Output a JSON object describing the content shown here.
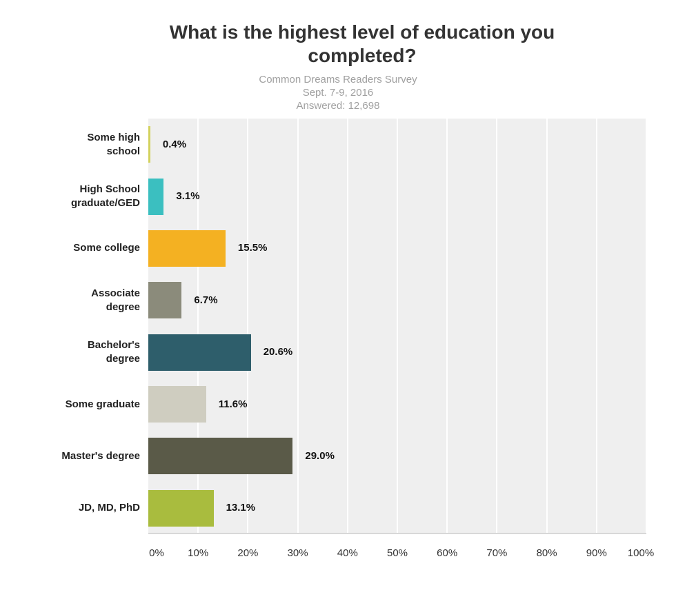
{
  "chart_data": {
    "type": "bar",
    "orientation": "horizontal",
    "title": "What is the highest level of education you completed?",
    "subtitle": [
      "Common Dreams Readers Survey",
      "Sept. 7-9, 2016",
      "Answered: 12,698"
    ],
    "categories": [
      "Some high school",
      "High School graduate/GED",
      "Some college",
      "Associate degree",
      "Bachelor's degree",
      "Some graduate",
      "Master's degree",
      "JD, MD, PhD"
    ],
    "values": [
      0.4,
      3.1,
      15.5,
      6.7,
      20.6,
      11.6,
      29.0,
      13.1
    ],
    "value_labels": [
      "0.4%",
      "3.1%",
      "15.5%",
      "6.7%",
      "20.6%",
      "11.6%",
      "29.0%",
      "13.1%"
    ],
    "colors": [
      "#d3d25e",
      "#3bbfc0",
      "#f4b122",
      "#8b8b7b",
      "#2e5e6b",
      "#cfcdc0",
      "#5a5a48",
      "#a9bc3e"
    ],
    "xlim": [
      0,
      100
    ],
    "xticks": [
      {
        "value": 0,
        "label": "0%"
      },
      {
        "value": 10,
        "label": "10%"
      },
      {
        "value": 20,
        "label": "20%"
      },
      {
        "value": 30,
        "label": "30%"
      },
      {
        "value": 40,
        "label": "40%"
      },
      {
        "value": 50,
        "label": "50%"
      },
      {
        "value": 60,
        "label": "60%"
      },
      {
        "value": 70,
        "label": "70%"
      },
      {
        "value": 80,
        "label": "80%"
      },
      {
        "value": 90,
        "label": "90%"
      },
      {
        "value": 100,
        "label": "100%"
      }
    ],
    "grid": true
  }
}
